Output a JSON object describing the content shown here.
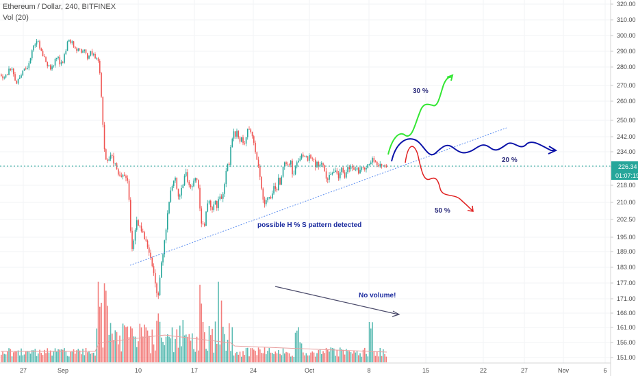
{
  "header": {
    "symbol_line": "Ethereum / Dollar, 240, BITFINEX",
    "volume_line": "Vol (20)"
  },
  "price_axis": {
    "ticks": [
      "320.00",
      "310.00",
      "300.00",
      "290.00",
      "280.00",
      "270.00",
      "260.00",
      "250.00",
      "242.00",
      "234.00",
      "226.00",
      "218.00",
      "210.00",
      "202.50",
      "195.00",
      "189.00",
      "183.00",
      "177.00",
      "171.00",
      "166.00",
      "161.00",
      "156.00",
      "151.00"
    ],
    "current_price": "226.34",
    "countdown": "01:07:19"
  },
  "time_axis": {
    "labels": [
      "27",
      "Sep",
      "10",
      "17",
      "24",
      "Oct",
      "8",
      "15",
      "22",
      "27",
      "Nov",
      "6"
    ]
  },
  "annotations": {
    "pattern_text": "possible H % S pattern detected",
    "volume_text": "No volume!",
    "up_label": "30 %",
    "flat_label": "20 %",
    "down_label": "50 %"
  },
  "colors": {
    "up_candle": "#26a69a",
    "down_candle": "#ef5350",
    "price_line": "#26a69a",
    "trendline": "#5b8def",
    "annotation_text": "#1a2a9e",
    "scenario_up": "#33e633",
    "scenario_flat": "#0a12a8",
    "scenario_down": "#e02020",
    "volume_arrow": "#4a4a6a"
  },
  "chart_data": {
    "type": "candlestick",
    "title": "Ethereum / Dollar, 240, BITFINEX",
    "ylim": [
      148,
      322
    ],
    "current_price": 226.34,
    "price_path": [
      [
        0,
        276
      ],
      [
        4,
        272
      ],
      [
        9,
        276
      ],
      [
        14,
        280
      ],
      [
        18,
        277
      ],
      [
        22,
        271
      ],
      [
        26,
        273
      ],
      [
        30,
        275
      ],
      [
        34,
        280
      ],
      [
        38,
        278
      ],
      [
        42,
        283
      ],
      [
        46,
        291
      ],
      [
        51,
        294
      ],
      [
        55,
        297
      ],
      [
        59,
        290
      ],
      [
        63,
        287
      ],
      [
        67,
        282
      ],
      [
        71,
        281
      ],
      [
        75,
        279
      ],
      [
        79,
        284
      ],
      [
        83,
        287
      ],
      [
        87,
        281
      ],
      [
        91,
        284
      ],
      [
        95,
        290
      ],
      [
        99,
        298
      ],
      [
        103,
        296
      ],
      [
        107,
        294
      ],
      [
        111,
        291
      ],
      [
        115,
        293
      ],
      [
        119,
        289
      ],
      [
        123,
        291
      ],
      [
        127,
        286
      ],
      [
        131,
        289
      ],
      [
        135,
        288
      ],
      [
        139,
        286
      ],
      [
        143,
        283
      ],
      [
        146,
        275
      ],
      [
        148,
        257
      ],
      [
        150,
        246
      ],
      [
        152,
        234
      ],
      [
        154,
        230
      ],
      [
        158,
        229
      ],
      [
        162,
        233
      ],
      [
        166,
        228
      ],
      [
        170,
        226
      ],
      [
        174,
        221
      ],
      [
        178,
        223
      ],
      [
        182,
        223
      ],
      [
        186,
        219
      ],
      [
        189,
        205
      ],
      [
        191,
        192
      ],
      [
        193,
        190
      ],
      [
        196,
        198
      ],
      [
        199,
        203
      ],
      [
        202,
        199
      ],
      [
        205,
        198
      ],
      [
        208,
        196
      ],
      [
        211,
        195
      ],
      [
        214,
        193
      ],
      [
        217,
        189
      ],
      [
        220,
        185
      ],
      [
        223,
        181
      ],
      [
        226,
        176
      ],
      [
        229,
        171
      ],
      [
        232,
        176
      ],
      [
        235,
        185
      ],
      [
        238,
        189
      ],
      [
        241,
        196
      ],
      [
        244,
        206
      ],
      [
        247,
        213
      ],
      [
        250,
        218
      ],
      [
        253,
        221
      ],
      [
        256,
        220
      ],
      [
        259,
        214
      ],
      [
        262,
        213
      ],
      [
        265,
        217
      ],
      [
        268,
        221
      ],
      [
        271,
        223
      ],
      [
        274,
        219
      ],
      [
        277,
        218
      ],
      [
        280,
        217
      ],
      [
        283,
        221
      ],
      [
        286,
        222
      ],
      [
        289,
        216
      ],
      [
        292,
        204
      ],
      [
        295,
        199
      ],
      [
        298,
        201
      ],
      [
        301,
        206
      ],
      [
        304,
        211
      ],
      [
        307,
        209
      ],
      [
        310,
        207
      ],
      [
        313,
        211
      ],
      [
        316,
        208
      ],
      [
        319,
        214
      ],
      [
        322,
        210
      ],
      [
        325,
        215
      ],
      [
        328,
        221
      ],
      [
        331,
        226
      ],
      [
        334,
        228
      ],
      [
        337,
        238
      ],
      [
        340,
        246
      ],
      [
        343,
        241
      ],
      [
        346,
        245
      ],
      [
        349,
        239
      ],
      [
        352,
        242
      ],
      [
        355,
        236
      ],
      [
        358,
        240
      ],
      [
        361,
        245
      ],
      [
        364,
        246
      ],
      [
        367,
        243
      ],
      [
        370,
        239
      ],
      [
        373,
        233
      ],
      [
        376,
        229
      ],
      [
        379,
        221
      ],
      [
        382,
        214
      ],
      [
        385,
        208
      ],
      [
        388,
        211
      ],
      [
        391,
        214
      ],
      [
        394,
        210
      ],
      [
        397,
        214
      ],
      [
        400,
        219
      ],
      [
        403,
        214
      ],
      [
        406,
        221
      ],
      [
        409,
        219
      ],
      [
        412,
        224
      ],
      [
        415,
        229
      ],
      [
        418,
        227
      ],
      [
        421,
        226
      ],
      [
        424,
        228
      ],
      [
        427,
        222
      ],
      [
        430,
        225
      ],
      [
        433,
        228
      ],
      [
        436,
        230
      ],
      [
        439,
        232
      ],
      [
        442,
        231
      ],
      [
        445,
        233
      ],
      [
        448,
        230
      ],
      [
        451,
        231
      ],
      [
        454,
        229
      ],
      [
        457,
        231
      ],
      [
        460,
        227
      ],
      [
        463,
        228
      ],
      [
        466,
        226
      ],
      [
        469,
        228
      ],
      [
        472,
        225
      ],
      [
        475,
        222
      ],
      [
        478,
        221
      ],
      [
        481,
        223
      ],
      [
        484,
        222
      ],
      [
        487,
        223
      ],
      [
        490,
        225
      ],
      [
        493,
        221
      ],
      [
        496,
        224
      ],
      [
        499,
        225
      ],
      [
        502,
        222
      ],
      [
        505,
        224
      ],
      [
        508,
        227
      ],
      [
        511,
        225
      ],
      [
        514,
        226
      ],
      [
        517,
        225
      ],
      [
        520,
        227
      ],
      [
        523,
        224
      ],
      [
        526,
        225
      ],
      [
        529,
        226
      ],
      [
        532,
        224
      ],
      [
        535,
        227
      ],
      [
        538,
        226
      ],
      [
        541,
        228
      ],
      [
        544,
        230
      ],
      [
        547,
        229
      ],
      [
        550,
        227
      ],
      [
        553,
        226
      ],
      [
        556,
        228
      ],
      [
        559,
        227
      ],
      [
        562,
        226
      ],
      [
        565,
        226.34
      ]
    ],
    "volume_range": [
      0,
      160
    ],
    "annotations": [
      {
        "text": "possible H % S pattern detected"
      },
      {
        "text": "No volume!"
      },
      {
        "text": "30 %"
      },
      {
        "text": "20 %"
      },
      {
        "text": "50 %"
      }
    ]
  }
}
